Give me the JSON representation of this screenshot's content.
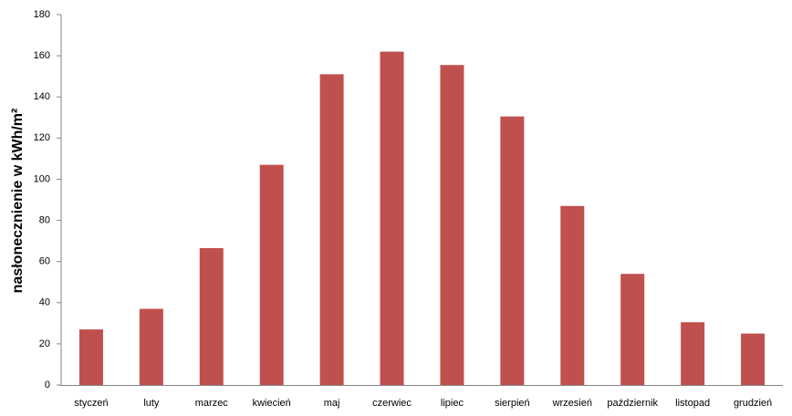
{
  "chart_data": {
    "type": "bar",
    "y_label": "nasłonecznienie w kWh/m²",
    "categories": [
      "styczeń",
      "luty",
      "marzec",
      "kwiecień",
      "maj",
      "czerwiec",
      "lipiec",
      "sierpień",
      "wrzesień",
      "październik",
      "listopad",
      "grudzień"
    ],
    "values": [
      27,
      37,
      66.5,
      107,
      151,
      162,
      155.5,
      130.5,
      87,
      54,
      30.5,
      25
    ],
    "color": "#c0504d",
    "ylim": [
      0,
      180
    ],
    "yticks": [
      0,
      20,
      40,
      60,
      80,
      100,
      120,
      140,
      160,
      180
    ],
    "grid": false
  }
}
